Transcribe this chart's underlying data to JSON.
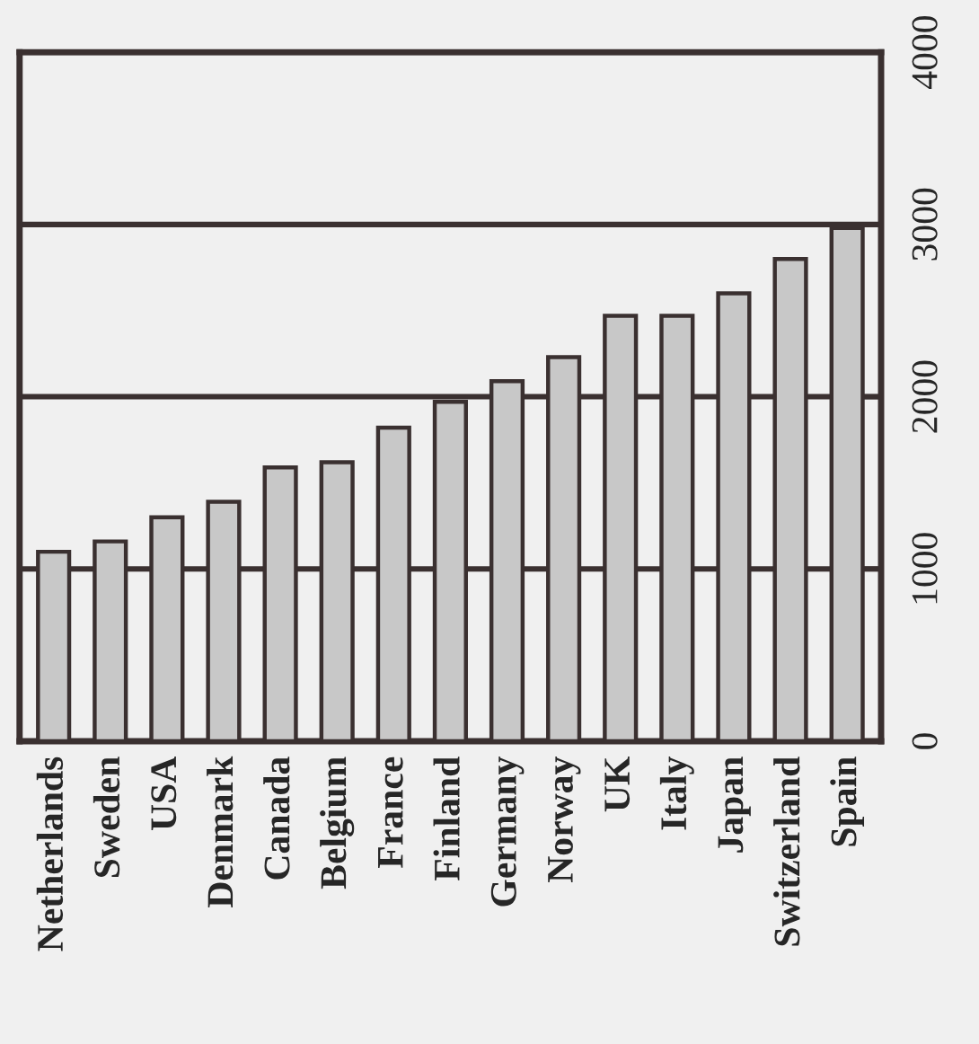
{
  "chart_data": {
    "type": "bar",
    "categories": [
      "Netherlands",
      "Sweden",
      "USA",
      "Denmark",
      "Canada",
      "Belgium",
      "France",
      "Finland",
      "Germany",
      "Norway",
      "UK",
      "Italy",
      "Japan",
      "Switzerland",
      "Spain"
    ],
    "values": [
      1100,
      1160,
      1300,
      1390,
      1590,
      1620,
      1820,
      1970,
      2090,
      2230,
      2470,
      2470,
      2600,
      2800,
      2980
    ],
    "color": "#c8c8c8",
    "ylim": [
      0,
      4000
    ],
    "yticks": [
      0,
      1000,
      2000,
      3000,
      4000
    ],
    "grid": "y"
  }
}
